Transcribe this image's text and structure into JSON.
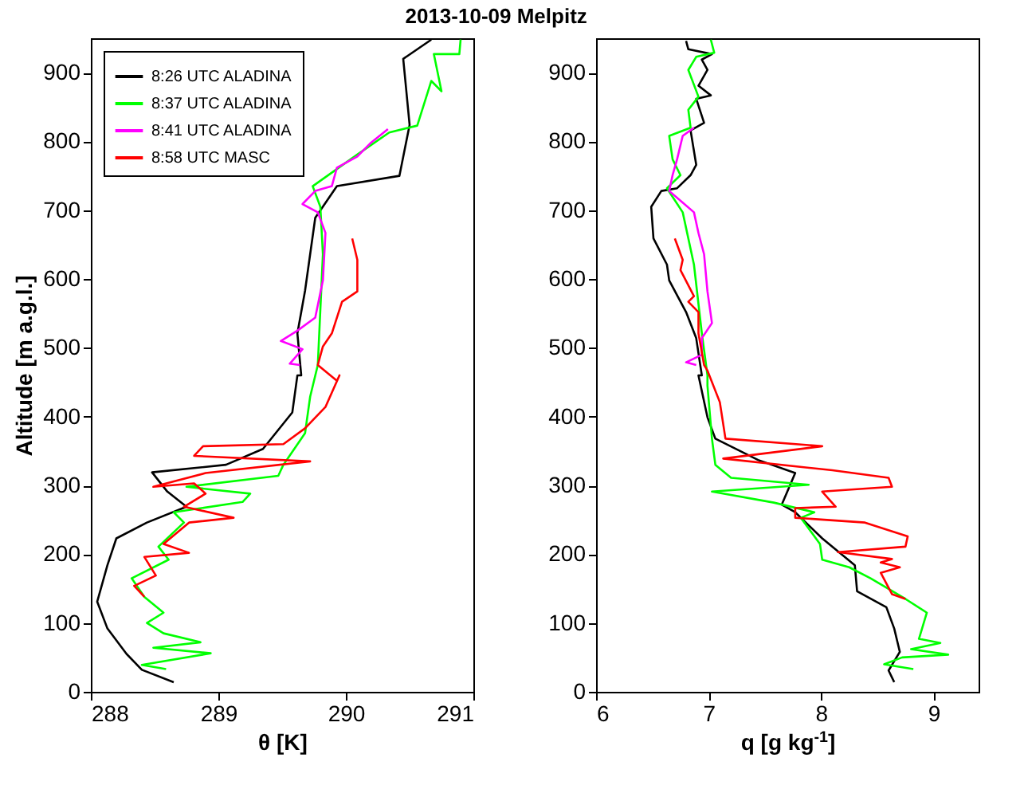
{
  "chart_data": [
    {
      "type": "line",
      "title": "2013-10-09 Melpitz",
      "xlabel": "θ [K]",
      "ylabel": "Altitude [m a.g.l.]",
      "xlim": [
        288,
        291
      ],
      "xticks": [
        288,
        289,
        290,
        291
      ],
      "ylim": [
        0,
        950
      ],
      "yticks": [
        0,
        100,
        200,
        300,
        400,
        500,
        600,
        700,
        800,
        900
      ],
      "grid": false,
      "legend": "top left",
      "line_style": "solid",
      "series": [
        {
          "name": "8:26 UTC ALADINA",
          "color": "#000000",
          "x": [
            288.65,
            288.4,
            288.28,
            288.13,
            288.05,
            288.13,
            288.2,
            288.44,
            288.75,
            288.6,
            288.48,
            289.06,
            289.35,
            289.58,
            289.62,
            289.65,
            289.62,
            289.68,
            289.76,
            289.93,
            290.42,
            290.5,
            290.45,
            290.67
          ],
          "values": [
            14,
            32,
            55,
            92,
            131,
            184,
            223,
            246,
            269,
            291,
            319,
            330,
            353,
            406,
            460,
            460,
            521,
            583,
            689,
            735,
            750,
            824,
            920,
            948
          ]
        },
        {
          "name": "8:37 UTC ALADINA",
          "color": "#00ff00",
          "x": [
            288.59,
            288.4,
            288.94,
            288.49,
            288.86,
            288.57,
            288.44,
            288.57,
            288.42,
            288.32,
            288.61,
            288.53,
            288.73,
            288.65,
            289.19,
            289.25,
            288.75,
            289.47,
            289.51,
            289.68,
            289.72,
            289.78,
            289.82,
            289.8,
            289.74,
            290.09,
            290.34,
            290.56,
            290.67,
            290.75,
            290.69,
            290.89,
            290.9
          ],
          "values": [
            33,
            39,
            56,
            64,
            72,
            85,
            100,
            115,
            138,
            165,
            192,
            211,
            246,
            261,
            276,
            288,
            298,
            314,
            330,
            376,
            429,
            475,
            636,
            705,
            735,
            781,
            813,
            823,
            888,
            873,
            927,
            927,
            948
          ]
        },
        {
          "name": "8:41 UTC ALADINA",
          "color": "#ff00ff",
          "x": [
            289.64,
            289.56,
            289.66,
            289.49,
            289.62,
            289.76,
            289.82,
            289.84,
            289.78,
            289.66,
            289.76,
            289.89,
            289.93,
            290.09,
            290.19,
            290.33
          ],
          "values": [
            475,
            477,
            498,
            510,
            525,
            544,
            598,
            667,
            697,
            709,
            728,
            735,
            762,
            778,
            797,
            818
          ]
        },
        {
          "name": "8:58 UTC MASC",
          "color": "#ff0000",
          "x": [
            288.42,
            288.34,
            288.51,
            288.42,
            288.77,
            288.57,
            288.77,
            289.12,
            288.73,
            288.9,
            288.81,
            288.49,
            288.9,
            289.72,
            288.81,
            288.88,
            289.51,
            289.68,
            289.84,
            289.95,
            289.93,
            289.78,
            289.82,
            289.89,
            289.97,
            290.09,
            290.09,
            290.05
          ],
          "values": [
            138,
            154,
            169,
            196,
            202,
            215,
            246,
            253,
            269,
            288,
            303,
            298,
            318,
            335,
            343,
            357,
            360,
            383,
            414,
            460,
            452,
            475,
            502,
            521,
            567,
            582,
            628,
            659
          ]
        }
      ]
    },
    {
      "type": "line",
      "xlabel": "q [g kg$^{-1}$]",
      "xlim": [
        6,
        9.4
      ],
      "xticks": [
        6,
        7,
        8,
        9
      ],
      "ylim": [
        0,
        950
      ],
      "yticks": [
        0,
        100,
        200,
        300,
        400,
        500,
        600,
        700,
        800,
        900
      ],
      "grid": false,
      "legend": false,
      "line_style": "solid",
      "series": [
        {
          "color": "#000000",
          "x": [
            8.65,
            8.6,
            8.7,
            8.65,
            8.58,
            8.32,
            8.3,
            8.01,
            7.77,
            7.65,
            7.7,
            7.77,
            7.44,
            7.06,
            6.99,
            6.91,
            6.94,
            6.89,
            6.8,
            6.65,
            6.63,
            6.51,
            6.49,
            6.58,
            6.72,
            6.84,
            6.89,
            6.84,
            6.96,
            6.89,
            7.02,
            6.91,
            6.99,
            6.94,
            7.03,
            6.82,
            6.8
          ],
          "values": [
            14,
            31,
            58,
            92,
            123,
            146,
            184,
            223,
            261,
            272,
            291,
            318,
            337,
            368,
            399,
            460,
            460,
            514,
            552,
            598,
            621,
            659,
            705,
            728,
            732,
            751,
            766,
            816,
            827,
            862,
            867,
            881,
            904,
            919,
            927,
            934,
            946
          ]
        },
        {
          "color": "#00ff00",
          "x": [
            8.82,
            8.56,
            8.72,
            9.13,
            8.8,
            9.06,
            8.87,
            8.94,
            8.75,
            8.44,
            8.25,
            8.01,
            7.99,
            7.82,
            7.94,
            7.58,
            7.03,
            7.89,
            7.2,
            7.06,
            7.03,
            6.99,
            6.99,
            6.94,
            6.87,
            6.77,
            6.63,
            6.75,
            6.68,
            6.65,
            6.84,
            6.82,
            6.91,
            6.82,
            6.89,
            7.05,
            7.02
          ],
          "values": [
            33,
            40,
            50,
            54,
            62,
            71,
            77,
            115,
            135,
            165,
            181,
            192,
            215,
            253,
            261,
            275,
            291,
            301,
            311,
            330,
            368,
            445,
            460,
            521,
            621,
            697,
            732,
            751,
            774,
            808,
            820,
            846,
            865,
            904,
            923,
            929,
            948
          ]
        },
        {
          "color": "#ff00ff",
          "x": [
            6.89,
            6.8,
            6.94,
            6.94,
            7.03,
            6.99,
            6.96,
            6.91,
            6.87,
            6.65,
            6.68,
            6.72,
            6.77,
            6.87
          ],
          "values": [
            475,
            479,
            490,
            514,
            536,
            582,
            636,
            667,
            697,
            728,
            751,
            774,
            808,
            820
          ]
        },
        {
          "color": "#ff0000",
          "x": [
            8.75,
            8.63,
            8.53,
            8.7,
            8.53,
            8.63,
            8.15,
            8.75,
            8.77,
            8.39,
            7.77,
            7.77,
            8.13,
            8.01,
            8.63,
            8.6,
            8.1,
            7.13,
            8.01,
            7.15,
            7.1,
            6.99,
            6.96,
            6.91,
            6.91,
            6.82,
            6.87,
            6.75,
            6.77,
            6.7
          ],
          "values": [
            135,
            142,
            173,
            181,
            188,
            193,
            203,
            211,
            226,
            246,
            253,
            267,
            269,
            291,
            298,
            311,
            322,
            339,
            357,
            368,
            421,
            467,
            475,
            521,
            552,
            567,
            575,
            613,
            628,
            659
          ]
        }
      ]
    }
  ]
}
